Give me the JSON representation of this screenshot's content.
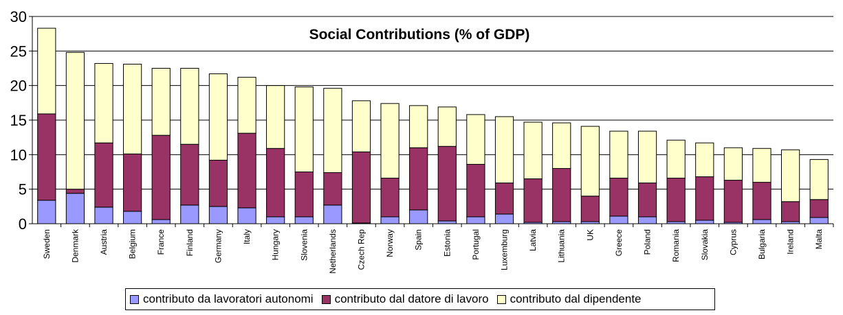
{
  "chart_data": {
    "type": "bar",
    "stacked": true,
    "title": "Social Contributions (% of GDP)",
    "xlabel": "",
    "ylabel": "",
    "ylim": [
      0,
      30
    ],
    "yticks": [
      0,
      5,
      10,
      15,
      20,
      25,
      30
    ],
    "grid": true,
    "legend_position": "bottom",
    "categories": [
      "Sweden",
      "Denmark",
      "Austria",
      "Belgium",
      "France",
      "Finland",
      "Germany",
      "Italy",
      "Hungary",
      "Slovenia",
      "Netherlands",
      "Czech Rep",
      "Norway",
      "Spain",
      "Estonia",
      "Portugal",
      "Luxemburg",
      "Latvia",
      "Lithuania",
      "UK",
      "Greece",
      "Poland",
      "Romania",
      "Slovakia",
      "Cyprus",
      "Bulgaria",
      "Ireland",
      "Malta"
    ],
    "series": [
      {
        "name": "contributo da lavoratori autonomi",
        "color": "#9999ff",
        "values": [
          3.4,
          4.4,
          2.4,
          1.8,
          0.6,
          2.7,
          2.5,
          2.3,
          1.0,
          1.0,
          2.7,
          0.1,
          1.0,
          2.0,
          0.4,
          1.0,
          1.4,
          0.2,
          0.3,
          0.3,
          1.1,
          1.0,
          0.3,
          0.5,
          0.2,
          0.6,
          0.3,
          0.9
        ]
      },
      {
        "name": "contributo dal datore di lavoro",
        "color": "#993366",
        "values": [
          12.5,
          0.6,
          9.3,
          8.3,
          12.2,
          8.8,
          6.7,
          10.8,
          9.9,
          6.5,
          4.7,
          10.3,
          5.6,
          9.0,
          10.8,
          7.6,
          4.5,
          6.3,
          7.7,
          3.7,
          5.5,
          4.9,
          6.3,
          6.3,
          6.1,
          5.4,
          2.9,
          2.6
        ]
      },
      {
        "name": "contributo dal dipendente",
        "color": "#ffffcc",
        "values": [
          12.4,
          19.8,
          11.5,
          13.0,
          9.7,
          11.0,
          12.5,
          8.1,
          9.1,
          12.3,
          12.2,
          7.4,
          10.8,
          6.1,
          5.7,
          7.2,
          9.6,
          8.2,
          6.6,
          10.1,
          6.8,
          7.5,
          5.5,
          4.9,
          4.7,
          4.9,
          7.5,
          5.8
        ]
      }
    ]
  }
}
